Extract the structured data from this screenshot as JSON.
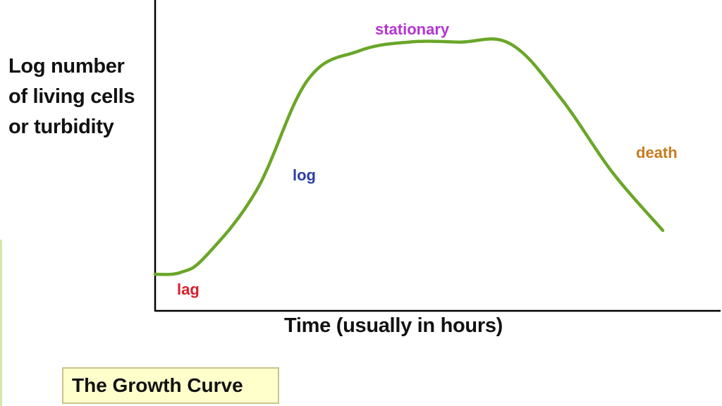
{
  "diagram": {
    "y_axis_label_lines": [
      "Log number",
      "of living cells",
      "or turbidity"
    ],
    "x_axis_label": "Time (usually in hours)",
    "title": "The Growth Curve",
    "phases": [
      {
        "key": "lag",
        "label": "lag",
        "color": "#d81e2a"
      },
      {
        "key": "log",
        "label": "log",
        "color": "#2b3fa6"
      },
      {
        "key": "stationary",
        "label": "stationary",
        "color": "#b534d6"
      },
      {
        "key": "death",
        "label": "death",
        "color": "#c77c1f"
      }
    ],
    "curve_color": "#6aa629",
    "axis_color": "#000000",
    "title_box_color": "#ffffcc"
  },
  "chart_data": {
    "type": "line",
    "title": "The Growth Curve",
    "xlabel": "Time (usually in hours)",
    "ylabel": "Log number of living cells or turbidity",
    "grid": false,
    "series": [
      {
        "x": [
          0,
          5,
          10,
          20,
          30,
          40,
          50,
          60,
          70,
          80,
          90,
          100
        ],
        "y": [
          1.0,
          1.05,
          1.5,
          3.3,
          6.3,
          7.1,
          7.35,
          7.35,
          7.3,
          5.8,
          3.8,
          2.2
        ]
      }
    ],
    "xlim": [
      0,
      100
    ],
    "ylim": [
      0,
      8.5
    ]
  }
}
